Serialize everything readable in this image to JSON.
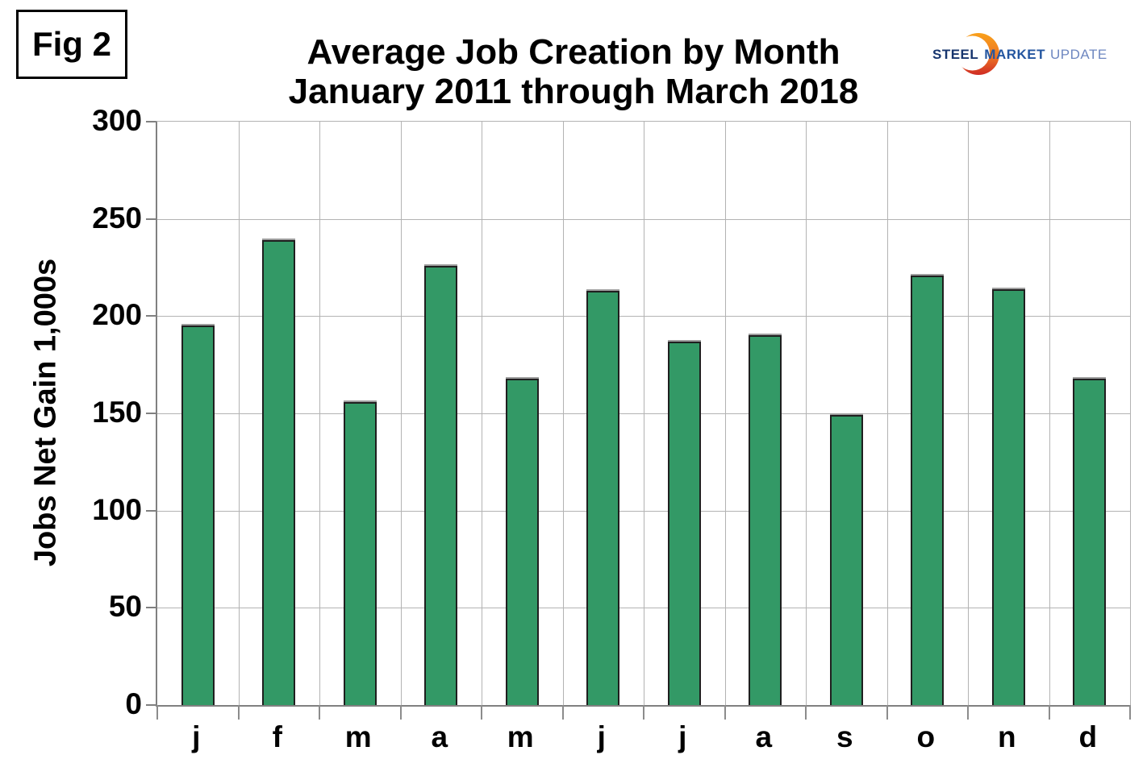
{
  "figure_label": "Fig 2",
  "title": {
    "line1": "Average Job Creation by Month",
    "line2": "January 2011 through March 2018"
  },
  "logo": {
    "word1": "STEEL",
    "word2": "MARKET",
    "word3": "UPDATE",
    "word1_color": "#17356e",
    "word2_color": "#2456a0",
    "word3_color": "#6e87c0",
    "swoosh_top_color": "#f9a11b",
    "swoosh_bottom_color": "#cf2b24"
  },
  "chart_data": {
    "type": "bar",
    "title": "Average Job Creation by Month January 2011 through March 2018",
    "categories": [
      "j",
      "f",
      "m",
      "a",
      "m",
      "j",
      "j",
      "a",
      "s",
      "o",
      "n",
      "d"
    ],
    "values": [
      195,
      239,
      156,
      226,
      168,
      213,
      187,
      190,
      149,
      221,
      214,
      168
    ],
    "xlabel": "",
    "ylabel": "Jobs Net Gain 1,000s",
    "ylim": [
      0,
      300
    ],
    "yticks": [
      0,
      50,
      100,
      150,
      200,
      250,
      300
    ],
    "grid": true,
    "legend": false,
    "bar_color": "#339966",
    "bar_border_color": "#1f1f1f",
    "gridline_color": "#b3b3b3",
    "axis_color": "#808080"
  }
}
